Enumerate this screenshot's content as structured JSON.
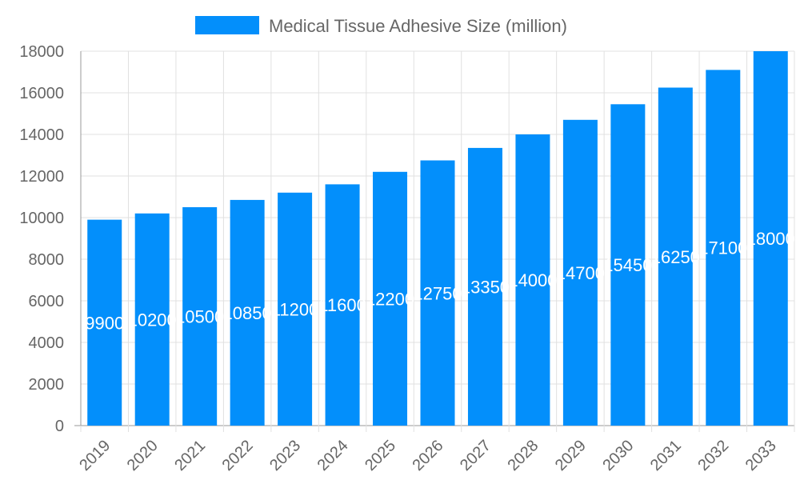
{
  "chart_data": {
    "type": "bar",
    "title": "",
    "xlabel": "",
    "ylabel": "",
    "categories": [
      "2019",
      "2020",
      "2021",
      "2022",
      "2023",
      "2024",
      "2025",
      "2026",
      "2027",
      "2028",
      "2029",
      "2030",
      "2031",
      "2032",
      "2033"
    ],
    "series": [
      {
        "name": "Medical Tissue Adhesive Size (million)",
        "values": [
          9900,
          10200,
          10500,
          10850,
          11200,
          11600,
          12200,
          12750,
          13350,
          14000,
          14700,
          15450,
          16250,
          17100,
          18000
        ]
      }
    ],
    "ylim": [
      0,
      18000
    ],
    "yticks": [
      0,
      2000,
      4000,
      6000,
      8000,
      10000,
      12000,
      14000,
      16000,
      18000
    ],
    "grid": true,
    "legend_position": "top",
    "data_labels": "inside-center",
    "colors": {
      "bar": "#038ffb",
      "grid": "#e0e0e0",
      "axis": "#999999",
      "text": "#666666",
      "label": "#ffffff"
    }
  }
}
